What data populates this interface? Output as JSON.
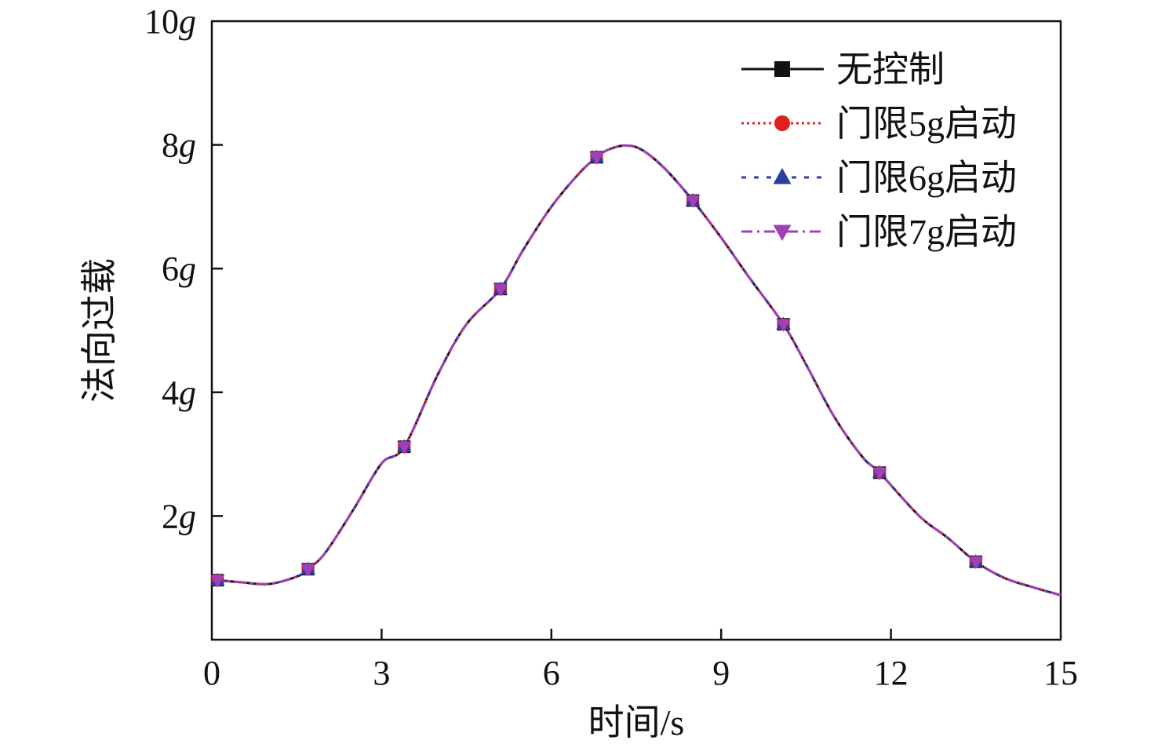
{
  "chart_data": {
    "type": "line",
    "title": "",
    "xlabel": "时间/s",
    "ylabel": "法向过载",
    "xlim": [
      0,
      15
    ],
    "ylim": [
      0,
      10
    ],
    "x_ticks": [
      0,
      3,
      6,
      9,
      12,
      15
    ],
    "y_ticks": [
      2,
      4,
      6,
      8,
      10
    ],
    "y_tick_unit": "g",
    "x_tick_labels": [
      "0",
      "3",
      "6",
      "9",
      "12",
      "15"
    ],
    "y_tick_labels": [
      {
        "num": "2",
        "unit": "g"
      },
      {
        "num": "4",
        "unit": "g"
      },
      {
        "num": "6",
        "unit": "g"
      },
      {
        "num": "8",
        "unit": "g"
      },
      {
        "num": "10",
        "unit": "g"
      }
    ],
    "legend_position": "top-right",
    "x": [
      0,
      0.5,
      1.0,
      1.5,
      1.7,
      2.0,
      2.5,
      3.0,
      3.4,
      4.0,
      4.5,
      5.1,
      5.5,
      6.0,
      6.5,
      6.8,
      7.0,
      7.3,
      7.6,
      8.0,
      8.5,
      9.0,
      9.5,
      10.1,
      10.5,
      11.0,
      11.5,
      11.8,
      12.5,
      13.0,
      13.5,
      14.0,
      14.5,
      15.0
    ],
    "series": [
      {
        "name": "无控制",
        "color": "#111111",
        "dash": "",
        "marker": "square",
        "y": [
          0.97,
          0.93,
          0.9,
          1.02,
          1.14,
          1.4,
          2.1,
          2.85,
          3.12,
          4.3,
          5.1,
          5.67,
          6.3,
          7.0,
          7.55,
          7.8,
          7.92,
          7.99,
          7.92,
          7.62,
          7.1,
          6.5,
          5.85,
          5.1,
          4.45,
          3.6,
          2.95,
          2.7,
          2.0,
          1.65,
          1.26,
          1.0,
          0.85,
          0.72
        ],
        "markers_x": [
          0.1,
          1.7,
          3.4,
          5.1,
          6.8,
          8.5,
          10.1,
          11.8,
          13.5
        ]
      },
      {
        "name": "门限5g启动",
        "color": "#e02020",
        "dash": "3 4",
        "marker": "circle",
        "y": [
          0.97,
          0.93,
          0.9,
          1.02,
          1.14,
          1.4,
          2.1,
          2.85,
          3.12,
          4.3,
          5.1,
          5.67,
          6.3,
          7.0,
          7.55,
          7.8,
          7.92,
          7.99,
          7.92,
          7.62,
          7.1,
          6.5,
          5.85,
          5.1,
          4.45,
          3.6,
          2.95,
          2.7,
          2.0,
          1.65,
          1.26,
          1.0,
          0.85,
          0.72
        ],
        "markers_x": [
          0.1,
          1.7,
          3.4,
          5.1,
          6.8,
          8.5,
          10.1,
          11.8,
          13.5
        ]
      },
      {
        "name": "门限6g启动",
        "color": "#2a3fa0",
        "dash": "6 10",
        "marker": "triangle-up",
        "y": [
          0.97,
          0.93,
          0.9,
          1.02,
          1.14,
          1.4,
          2.1,
          2.85,
          3.12,
          4.3,
          5.1,
          5.67,
          6.3,
          7.0,
          7.55,
          7.8,
          7.92,
          7.99,
          7.92,
          7.62,
          7.1,
          6.5,
          5.85,
          5.1,
          4.45,
          3.6,
          2.95,
          2.7,
          2.0,
          1.65,
          1.26,
          1.0,
          0.85,
          0.72
        ],
        "markers_x": [
          0.1,
          1.7,
          3.4,
          5.1,
          6.8,
          8.5,
          10.1,
          11.8,
          13.5
        ]
      },
      {
        "name": "门限7g启动",
        "color": "#a040b8",
        "dash": "14 6 3 6",
        "marker": "triangle-down",
        "y": [
          0.97,
          0.93,
          0.9,
          1.02,
          1.14,
          1.4,
          2.1,
          2.85,
          3.12,
          4.3,
          5.1,
          5.67,
          6.3,
          7.0,
          7.55,
          7.8,
          7.92,
          7.99,
          7.92,
          7.62,
          7.1,
          6.5,
          5.85,
          5.1,
          4.45,
          3.6,
          2.95,
          2.7,
          2.0,
          1.65,
          1.26,
          1.0,
          0.85,
          0.72
        ],
        "markers_x": [
          0.1,
          1.7,
          3.4,
          5.1,
          6.8,
          8.5,
          10.1,
          11.8,
          13.5
        ]
      }
    ]
  }
}
